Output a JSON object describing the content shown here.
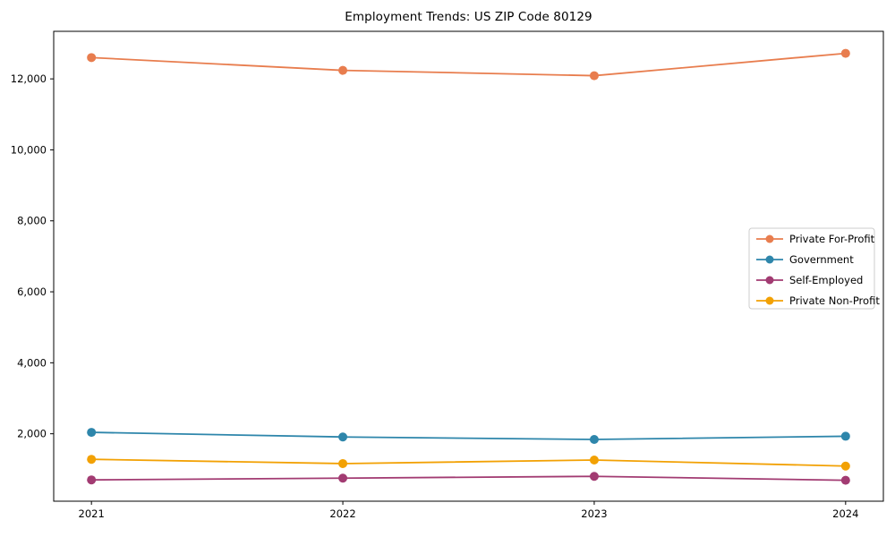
{
  "figure": {
    "title": "Employment Trends: US ZIP Code 80129"
  },
  "chart_data": {
    "type": "line",
    "title": "Employment Trends: US ZIP Code 80129",
    "xlabel": "",
    "ylabel": "",
    "categories": [
      "2021",
      "2022",
      "2023",
      "2024"
    ],
    "series": [
      {
        "name": "Private For-Profit",
        "color": "#E87D4E",
        "values": [
          12600,
          12240,
          12090,
          12720
        ]
      },
      {
        "name": "Government",
        "color": "#2E86AB",
        "values": [
          2040,
          1910,
          1840,
          1930
        ]
      },
      {
        "name": "Self-Employed",
        "color": "#A23B72",
        "values": [
          700,
          750,
          800,
          690
        ]
      },
      {
        "name": "Private Non-Profit",
        "color": "#F2A104",
        "values": [
          1280,
          1160,
          1260,
          1090
        ]
      }
    ],
    "yticks": [
      2000,
      4000,
      6000,
      8000,
      10000,
      12000
    ],
    "ytick_labels": [
      "2,000",
      "4,000",
      "6,000",
      "8,000",
      "10,000",
      "12,000"
    ],
    "ylim": [
      100,
      13340
    ],
    "grid": false,
    "marker": "circle",
    "legend": {
      "position": "center right",
      "entries": [
        "Private For-Profit",
        "Government",
        "Self-Employed",
        "Private Non-Profit"
      ]
    },
    "axis_color": "#000000",
    "legend_border_color": "#cccccc",
    "legend_background": "#ffffff"
  }
}
